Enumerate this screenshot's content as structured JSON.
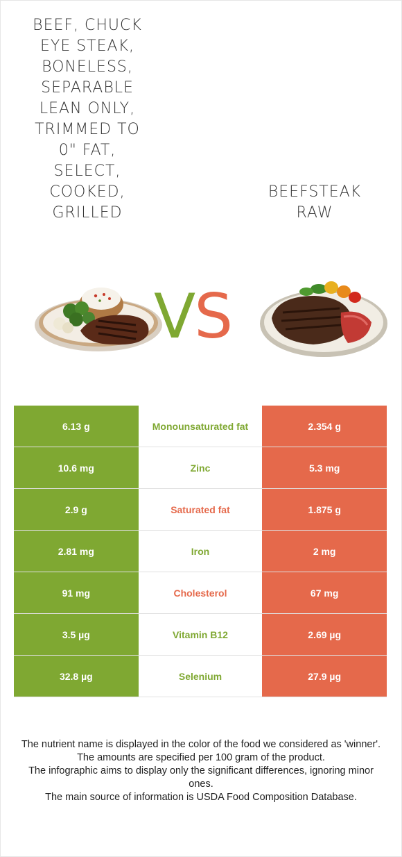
{
  "food_left": {
    "name_lines": [
      "BEEF, CHUCK",
      "EYE STEAK,",
      "BONELESS,",
      "SEPARABLE",
      "LEAN ONLY,",
      "TRIMMED TO",
      "0\" FAT,",
      "SELECT,",
      "COOKED,",
      "GRILLED"
    ],
    "image_icon": "steak-with-potato-and-broccoli-plate-icon",
    "color": "#7fa832"
  },
  "food_right": {
    "name_lines": [
      "BEEFSTEAK",
      "RAW"
    ],
    "image_icon": "steak-with-vegetables-plate-icon",
    "color": "#e5694b"
  },
  "vs": {
    "v": "V",
    "s": "S"
  },
  "rows": [
    {
      "left": "6.13 g",
      "nutrient": "Monounsaturated fat",
      "right": "2.354 g",
      "winner": "left"
    },
    {
      "left": "10.6 mg",
      "nutrient": "Zinc",
      "right": "5.3 mg",
      "winner": "left"
    },
    {
      "left": "2.9 g",
      "nutrient": "Saturated fat",
      "right": "1.875 g",
      "winner": "right"
    },
    {
      "left": "2.81 mg",
      "nutrient": "Iron",
      "right": "2 mg",
      "winner": "left"
    },
    {
      "left": "91 mg",
      "nutrient": "Cholesterol",
      "right": "67 mg",
      "winner": "right"
    },
    {
      "left": "3.5 µg",
      "nutrient": "Vitamin B12",
      "right": "2.69 µg",
      "winner": "left"
    },
    {
      "left": "32.8 µg",
      "nutrient": "Selenium",
      "right": "27.9 µg",
      "winner": "left"
    }
  ],
  "notes": [
    "The nutrient name is displayed in the color of the food we considered as 'winner'.",
    "The amounts are specified per 100 gram of the product.",
    "The infographic aims to display only the significant differences, ignoring minor ones.",
    "The main source of information is USDA Food Composition Database."
  ]
}
